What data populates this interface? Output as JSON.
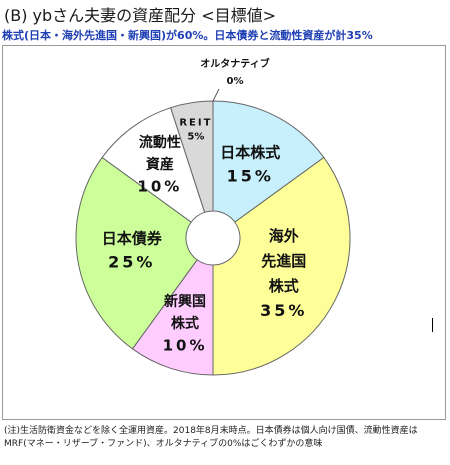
{
  "title": "(B) ybさん夫妻の資産配分 <目標値>",
  "subtitle": "株式(日本・海外先進国・新興国)が60%。日本債券と流動性資産が計35%",
  "footnote": "(注)生活防衛資金などを除く全運用資産。2018年8月末時点。日本債券は個人向け国債、流動性資産はMRF(マネー・リザーブ・ファンド)、オルタナティブの0%はごくわずかの意味",
  "chart_data": {
    "type": "pie",
    "donut": true,
    "title": "",
    "slices": [
      {
        "label_lines": [
          "日本株式"
        ],
        "value_text": "15%",
        "value": 15,
        "color": "#c8f0fc"
      },
      {
        "label_lines": [
          "海外",
          "先進国",
          "株式"
        ],
        "value_text": "35%",
        "value": 35,
        "color": "#ffff99"
      },
      {
        "label_lines": [
          "新興国",
          "株式"
        ],
        "value_text": "10%",
        "value": 10,
        "color": "#ffccff"
      },
      {
        "label_lines": [
          "日本債券"
        ],
        "value_text": "25%",
        "value": 25,
        "color": "#ccff99"
      },
      {
        "label_lines": [
          "流動性",
          "資産"
        ],
        "value_text": "10%",
        "value": 10,
        "color": "#ffffff"
      },
      {
        "label_lines": [
          "REIT"
        ],
        "value_text": "5%",
        "value": 5,
        "color": "#d9d9d9"
      },
      {
        "label_lines": [
          "オルタナティブ"
        ],
        "value_text": "0%",
        "value": 0,
        "color": "#ffffff"
      }
    ]
  }
}
